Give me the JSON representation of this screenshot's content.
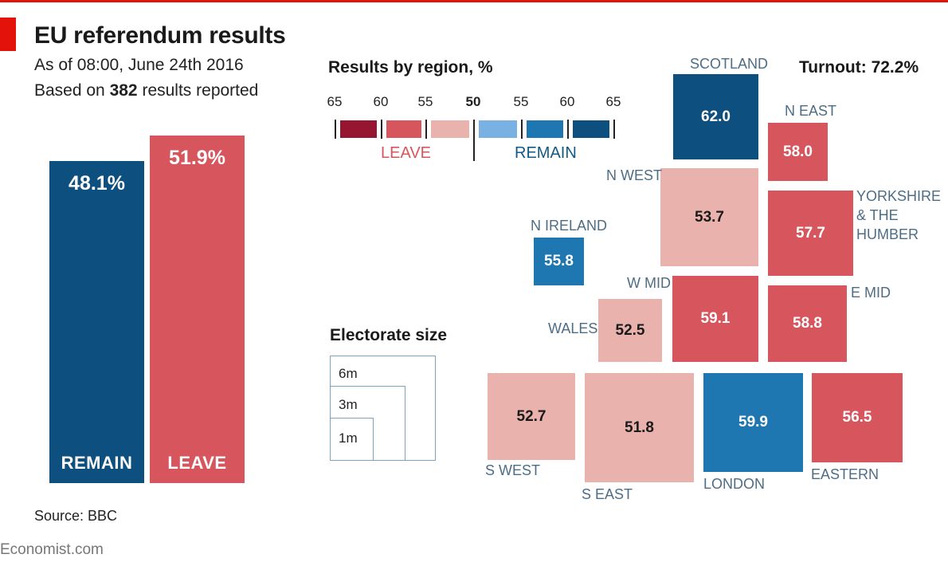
{
  "title": "EU referendum results",
  "subtitle_line1": "As of 08:00, June 24th 2016",
  "subtitle_line2_pre": "Based on ",
  "subtitle_line2_bold": "382",
  "subtitle_line2_post": " results reported",
  "source": "Source: BBC",
  "footer": "Economist.com",
  "turnout": "Turnout: 72.2%",
  "regions_title": "Results by region, %",
  "legend": {
    "ticks": [
      "65",
      "60",
      "55",
      "50",
      "55",
      "60",
      "65"
    ],
    "leave_label": "LEAVE",
    "remain_label": "REMAIN",
    "colors": [
      "#961632",
      "#d7565d",
      "#eab2ac",
      "#79b2e2",
      "#1f77b1",
      "#0d4f7e"
    ]
  },
  "electorate": {
    "title": "Electorate size",
    "labels": [
      "6m",
      "3m",
      "1m"
    ]
  },
  "colors": {
    "remain": "#0d4f7e",
    "leave": "#d7565d",
    "leave_dark": "#961632",
    "leave_light": "#eab2ac",
    "remain_light": "#79b2e2",
    "remain_mid": "#1f77b1"
  },
  "chart_data": [
    {
      "type": "bar",
      "categories": [
        "REMAIN",
        "LEAVE"
      ],
      "values": [
        48.1,
        51.9
      ],
      "value_labels": [
        "48.1%",
        "51.9%"
      ],
      "ylim": [
        0,
        51.9
      ]
    },
    {
      "type": "heatmap",
      "regions": [
        {
          "name": "SCOTLAND",
          "value": 62.0,
          "label": "62.0",
          "side": "remain"
        },
        {
          "name": "N EAST",
          "value": 58.0,
          "label": "58.0",
          "side": "leave"
        },
        {
          "name": "N WEST",
          "value": 53.7,
          "label": "53.7",
          "side": "leave"
        },
        {
          "name": "YORKSHIRE & THE HUMBER",
          "value": 57.7,
          "label": "57.7",
          "side": "leave"
        },
        {
          "name": "N IRELAND",
          "value": 55.8,
          "label": "55.8",
          "side": "remain"
        },
        {
          "name": "W MID",
          "value": 59.1,
          "label": "59.1",
          "side": "leave"
        },
        {
          "name": "E MID",
          "value": 58.8,
          "label": "58.8",
          "side": "leave"
        },
        {
          "name": "WALES",
          "value": 52.5,
          "label": "52.5",
          "side": "leave"
        },
        {
          "name": "S WEST",
          "value": 52.7,
          "label": "52.7",
          "side": "leave"
        },
        {
          "name": "S EAST",
          "value": 51.8,
          "label": "51.8",
          "side": "leave"
        },
        {
          "name": "LONDON",
          "value": 59.9,
          "label": "59.9",
          "side": "remain"
        },
        {
          "name": "EASTERN",
          "value": 56.5,
          "label": "56.5",
          "side": "leave"
        }
      ],
      "name_lines": {
        "YORKSHIRE & THE HUMBER": [
          "YORKSHIRE",
          "& THE",
          "HUMBER"
        ]
      }
    }
  ]
}
